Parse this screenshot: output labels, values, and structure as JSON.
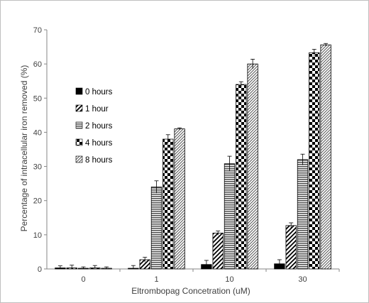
{
  "chart_data": {
    "type": "bar",
    "title": "",
    "xlabel": "Eltrombopag Concetration (uM)",
    "ylabel": "Percentage of intracellular iron removed (%)",
    "ylim": [
      0,
      70
    ],
    "yticks": [
      0,
      10,
      20,
      30,
      40,
      50,
      60,
      70
    ],
    "grid": false,
    "legend_position": "left-inside",
    "categories": [
      "0",
      "1",
      "10",
      "30"
    ],
    "series": [
      {
        "name": "0 hours",
        "pattern": "solid",
        "values": [
          0.3,
          0.2,
          1.3,
          1.5
        ],
        "errors": [
          0.6,
          0.8,
          1.2,
          1.2
        ]
      },
      {
        "name": "1 hour",
        "pattern": "diagonal",
        "values": [
          0.3,
          2.7,
          10.5,
          12.7
        ],
        "errors": [
          0.8,
          0.7,
          0.6,
          0.8
        ]
      },
      {
        "name": "2 hours",
        "pattern": "horizontal",
        "values": [
          0.2,
          24.0,
          30.8,
          32.0
        ],
        "errors": [
          0.4,
          1.8,
          2.2,
          1.6
        ]
      },
      {
        "name": "4 hours",
        "pattern": "checker",
        "values": [
          0.3,
          38.0,
          54.0,
          63.3
        ],
        "errors": [
          0.7,
          1.3,
          0.8,
          1.0
        ]
      },
      {
        "name": "8 hours",
        "pattern": "diagonal-dense",
        "values": [
          0.2,
          41.0,
          60.0,
          65.6
        ],
        "errors": [
          0.4,
          0.3,
          1.4,
          0.4
        ]
      }
    ]
  }
}
